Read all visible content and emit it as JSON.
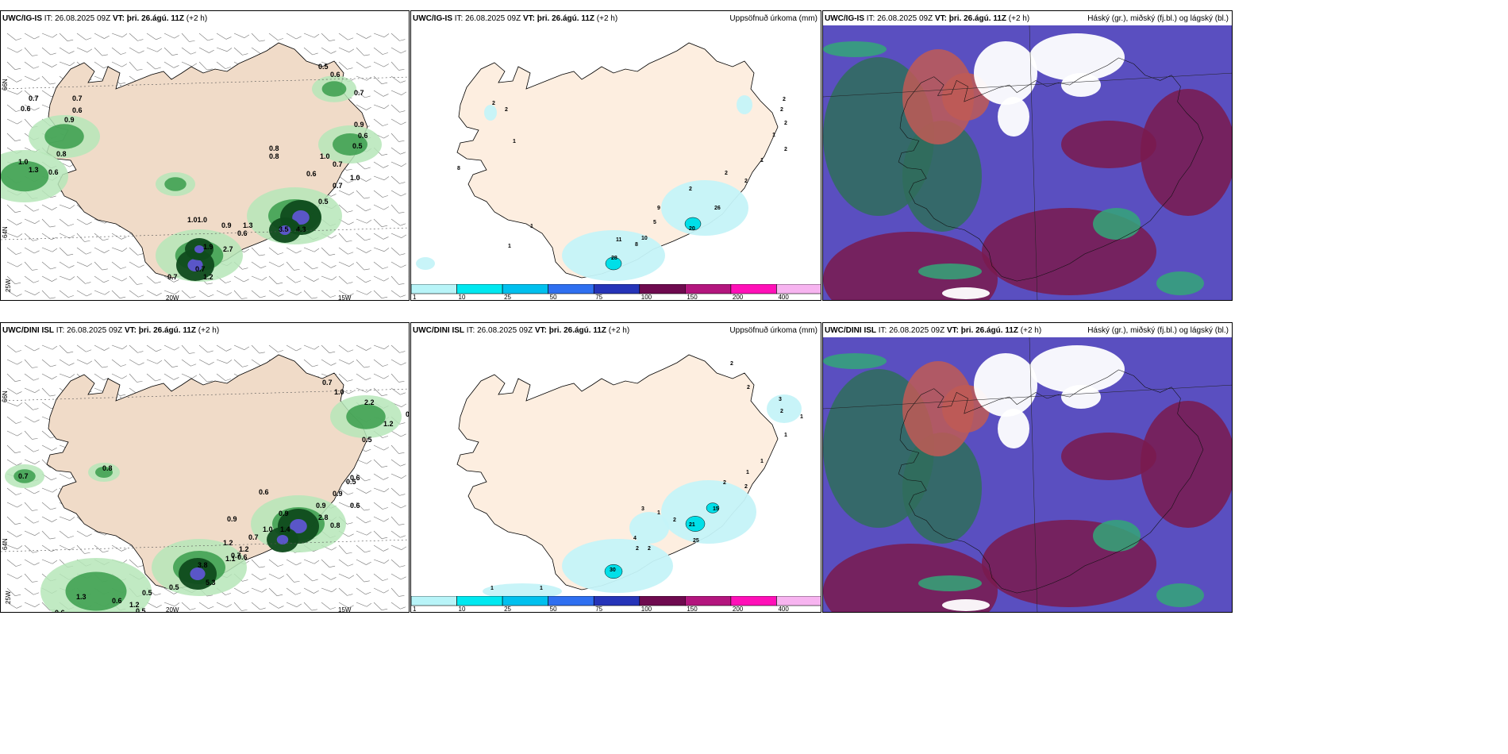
{
  "panels": {
    "p1": {
      "model": "UWC/IG-IS",
      "it_label": "IT:",
      "it": "26.08.2025 09Z",
      "vt_label": "VT:",
      "vt": "þri. 26.ágú. 11Z",
      "lead": "(+2 h)"
    },
    "p2": {
      "model": "UWC/IG-IS",
      "it_label": "IT:",
      "it": "26.08.2025 09Z",
      "vt_label": "VT:",
      "vt": "þri. 26.ágú. 11Z",
      "lead": "(+2 h)",
      "title": "Uppsöfnuð úrkoma (mm)"
    },
    "p3": {
      "model": "UWC/IG-IS",
      "it_label": "IT:",
      "it": "26.08.2025 09Z",
      "vt_label": "VT:",
      "vt": "þri. 26.ágú. 11Z",
      "lead": "(+2 h)",
      "title": "Háský (gr.), miðský (fj.bl.) og lágský (bl.)"
    },
    "p4": {
      "model": "UWC/DINI ISL",
      "it_label": "IT:",
      "it": "26.08.2025 09Z",
      "vt_label": "VT:",
      "vt": "þri. 26.ágú. 11Z",
      "lead": "(+2 h)"
    },
    "p5": {
      "model": "UWC/DINI ISL",
      "it_label": "IT:",
      "it": "26.08.2025 09Z",
      "vt_label": "VT:",
      "vt": "þri. 26.ágú. 11Z",
      "lead": "(+2 h)",
      "title": "Uppsöfnuð úrkoma (mm)"
    },
    "p6": {
      "model": "UWC/DINI ISL",
      "it_label": "IT:",
      "it": "26.08.2025 09Z",
      "vt_label": "VT:",
      "vt": "þri. 26.ágú. 11Z",
      "lead": "(+2 h)",
      "title": "Háský (gr.), miðský (fj.bl.) og lágský (bl.)"
    }
  },
  "axes": {
    "lat_66": "66N",
    "lat_64": "64N",
    "lon_20": "20W",
    "lon_15": "15W",
    "lon_25": "25W"
  },
  "colorbar": {
    "labels": [
      "1",
      "10",
      "25",
      "50",
      "75",
      "100",
      "150",
      "200",
      "400"
    ],
    "colors": [
      "#b8f4f8",
      "#00e8f0",
      "#00c0ee",
      "#2f6ff0",
      "#2634b8",
      "#6e0a4f",
      "#b3167e",
      "#ff10b8",
      "#f7b4f0"
    ]
  },
  "accum_labels": {
    "ig": [
      "2",
      "2",
      "1",
      "2",
      "8",
      "1",
      "1",
      "2",
      "2",
      "2",
      "1",
      "2",
      "1",
      "2",
      "2",
      "9",
      "5",
      "10",
      "8",
      "11",
      "28",
      "2",
      "26",
      "20"
    ],
    "dini": [
      "2",
      "2",
      "3",
      "2",
      "1",
      "1",
      "1",
      "1",
      "1",
      "2",
      "2",
      "2",
      "3",
      "4",
      "2",
      "2",
      "30",
      "15",
      "21",
      "25",
      "1",
      "1",
      "1",
      "3"
    ]
  },
  "wind_labels": {
    "ig": [
      "0.5",
      "0.6",
      "0.7",
      "0.7",
      "0.6",
      "0.6",
      "0.7",
      "0.9",
      "0.8",
      "0.9",
      "1.0",
      "1.3",
      "0.6",
      "0.6",
      "0.8",
      "0.8",
      "1.0",
      "0.5",
      "0.7",
      "1.0",
      "0.6",
      "0.7",
      "1.01.0",
      "0.9",
      "1.3",
      "0.6",
      "1.9",
      "2.7",
      "0.7",
      "3.5",
      "4.3",
      "0.7",
      "1.2",
      "0.5"
    ],
    "dini": [
      "0.7",
      "1.0",
      "2.2",
      "1.2",
      "0.5",
      "0.8",
      "0.7",
      "0.6",
      "0.6",
      "0.9",
      "0.9",
      "0.5",
      "0.7",
      "0.7",
      "1.0",
      "0.9",
      "2.8",
      "1.4",
      "0.8",
      "0.9",
      "1.2",
      "1.1",
      "0.6",
      "1.2",
      "3.8",
      "5.3",
      "0.5",
      "0.6",
      "0.5",
      "0.6",
      "1.2",
      "0.5",
      "1.3",
      "0.6",
      "0.5"
    ]
  }
}
